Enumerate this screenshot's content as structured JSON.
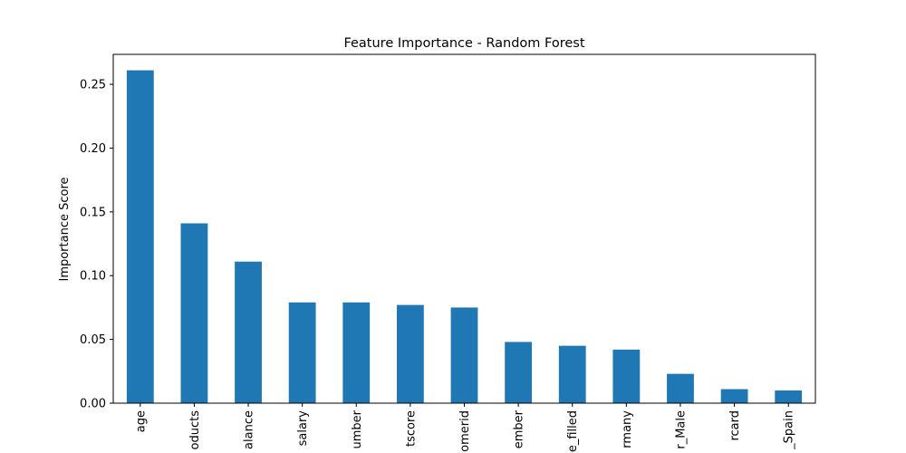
{
  "chart_data": {
    "type": "bar",
    "title": "Feature Importance - Random Forest",
    "xlabel": "",
    "ylabel": "Importance Score",
    "categories": [
      "age",
      "oducts",
      "alance",
      "salary",
      "umber",
      "tscore",
      "omerid",
      "ember",
      "e_filled",
      "rmany",
      "r_Male",
      "rcard",
      "_Spain"
    ],
    "values": [
      0.261,
      0.141,
      0.111,
      0.079,
      0.079,
      0.077,
      0.075,
      0.048,
      0.045,
      0.042,
      0.023,
      0.011,
      0.01
    ],
    "ylim": [
      0,
      0.2735
    ],
    "yticks": [
      0.0,
      0.05,
      0.1,
      0.15,
      0.2,
      0.25
    ],
    "ytick_labels": [
      "0.00",
      "0.05",
      "0.10",
      "0.15",
      "0.20",
      "0.25"
    ],
    "bar_color": "#1f77b4",
    "grid": false,
    "legend": "none"
  }
}
